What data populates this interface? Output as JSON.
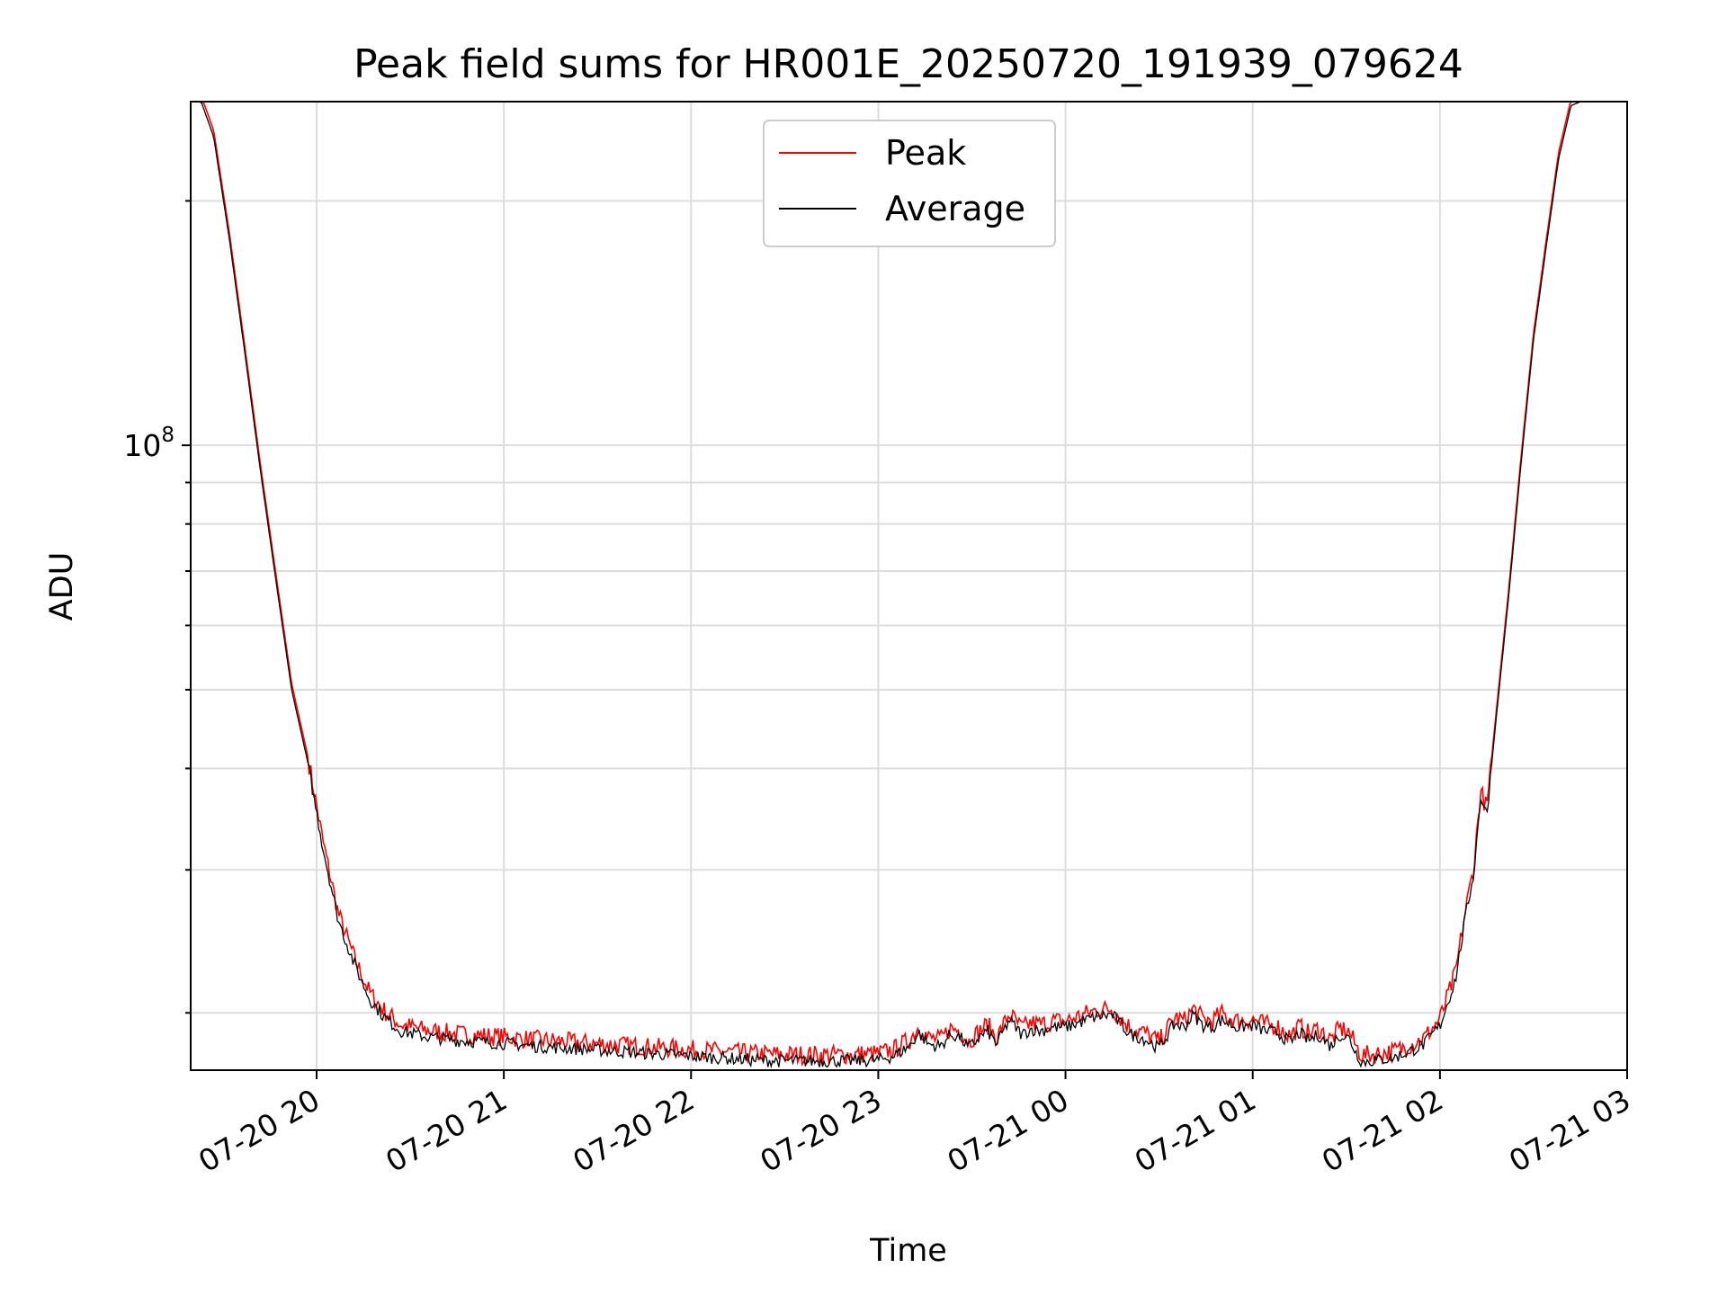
{
  "chart_data": {
    "type": "line",
    "title": "Peak field sums for HR001E_20250720_191939_079624",
    "xlabel": "Time",
    "ylabel": "ADU",
    "y_scale": "log",
    "ylim": [
      17000000,
      265000000
    ],
    "xlim": [
      "07-20 19:19:39",
      "07-21 03:00"
    ],
    "x_ticks": [
      {
        "value": "07-20 20:00",
        "label": "07-20 20"
      },
      {
        "value": "07-20 21:00",
        "label": "07-20 21"
      },
      {
        "value": "07-20 22:00",
        "label": "07-20 22"
      },
      {
        "value": "07-20 23:00",
        "label": "07-20 23"
      },
      {
        "value": "07-21 00:00",
        "label": "07-21 00"
      },
      {
        "value": "07-21 01:00",
        "label": "07-21 01"
      },
      {
        "value": "07-21 02:00",
        "label": "07-21 02"
      },
      {
        "value": "07-21 03:00",
        "label": "07-21 03"
      }
    ],
    "y_ticks": [
      {
        "value": 100000000,
        "base": "10",
        "exponent": "8"
      }
    ],
    "y_minor_ticks": [
      20000000,
      30000000,
      40000000,
      50000000,
      60000000,
      70000000,
      80000000,
      90000000,
      200000000
    ],
    "grid": true,
    "legend_position": "upper-center",
    "series": [
      {
        "name": "Peak",
        "color": "#ff0000",
        "offset_ratio": 1.018,
        "noise": 0.012
      },
      {
        "name": "Average",
        "color": "#000000",
        "offset_ratio": 1.0,
        "noise": 0.008
      }
    ],
    "x": [
      "07-20 19:19:39",
      "07-20 19:23",
      "07-20 19:27",
      "07-20 19:32",
      "07-20 19:37",
      "07-20 19:42",
      "07-20 19:47",
      "07-20 19:52",
      "07-20 19:57",
      "07-20 20:02",
      "07-20 20:07",
      "07-20 20:12",
      "07-20 20:17",
      "07-20 20:22",
      "07-20 20:27",
      "07-20 20:35",
      "07-20 20:40",
      "07-20 20:45",
      "07-20 20:50",
      "07-20 21:00",
      "07-20 21:10",
      "07-20 21:20",
      "07-20 21:30",
      "07-20 21:40",
      "07-20 21:50",
      "07-20 22:00",
      "07-20 22:10",
      "07-20 22:20",
      "07-20 22:30",
      "07-20 22:40",
      "07-20 22:50",
      "07-20 23:00",
      "07-20 23:05",
      "07-20 23:10",
      "07-20 23:13",
      "07-20 23:16",
      "07-20 23:20",
      "07-20 23:23",
      "07-20 23:26",
      "07-20 23:29",
      "07-20 23:32",
      "07-20 23:35",
      "07-20 23:38",
      "07-20 23:42",
      "07-20 23:46",
      "07-20 23:49",
      "07-20 23:52",
      "07-20 23:56",
      "07-21 00:00",
      "07-21 00:05",
      "07-21 00:10",
      "07-21 00:15",
      "07-21 00:18",
      "07-21 00:21",
      "07-21 00:25",
      "07-21 00:30",
      "07-21 00:35",
      "07-21 00:38",
      "07-21 00:41",
      "07-21 00:44",
      "07-21 00:47",
      "07-21 00:50",
      "07-21 00:55",
      "07-21 01:00",
      "07-21 01:04",
      "07-21 01:08",
      "07-21 01:12",
      "07-21 01:15",
      "07-21 01:18",
      "07-21 01:21",
      "07-21 01:25",
      "07-21 01:28",
      "07-21 01:31",
      "07-21 01:33",
      "07-21 01:35",
      "07-21 01:40",
      "07-21 01:45",
      "07-21 01:50",
      "07-21 01:55",
      "07-21 02:00",
      "07-21 02:05",
      "07-21 02:08",
      "07-21 02:11",
      "07-21 02:13",
      "07-21 02:15",
      "07-21 02:18",
      "07-21 02:22",
      "07-21 02:26",
      "07-21 02:30",
      "07-21 02:34",
      "07-21 02:38",
      "07-21 02:42",
      "07-21 02:45"
    ],
    "values": [
      265000000,
      265000000,
      240000000,
      180000000,
      130000000,
      93000000,
      68000000,
      50000000,
      41000000,
      32000000,
      26000000,
      23000000,
      20800000,
      19700000,
      19000000,
      18700000,
      18600000,
      18500000,
      18450000,
      18350000,
      18200000,
      18100000,
      18000000,
      17900000,
      17800000,
      17700000,
      17600000,
      17500000,
      17450000,
      17450000,
      17450000,
      17500000,
      17700000,
      18200000,
      18900000,
      18300000,
      18200000,
      18800000,
      18700000,
      18100000,
      18600000,
      19000000,
      18300000,
      19600000,
      18800000,
      19100000,
      19000000,
      19200000,
      19200000,
      19500000,
      19800000,
      19900000,
      19300000,
      18800000,
      18600000,
      18100000,
      19400000,
      19200000,
      19900000,
      19300000,
      19200000,
      19600000,
      19200000,
      19300000,
      19000000,
      18900000,
      18400000,
      18900000,
      18500000,
      18800000,
      18200000,
      18800000,
      18600000,
      17900000,
      17400000,
      17500000,
      17600000,
      17900000,
      18300000,
      19300000,
      22000000,
      26000000,
      30000000,
      37000000,
      35000000,
      46000000,
      65000000,
      95000000,
      135000000,
      175000000,
      225000000,
      262000000,
      265000000
    ]
  }
}
